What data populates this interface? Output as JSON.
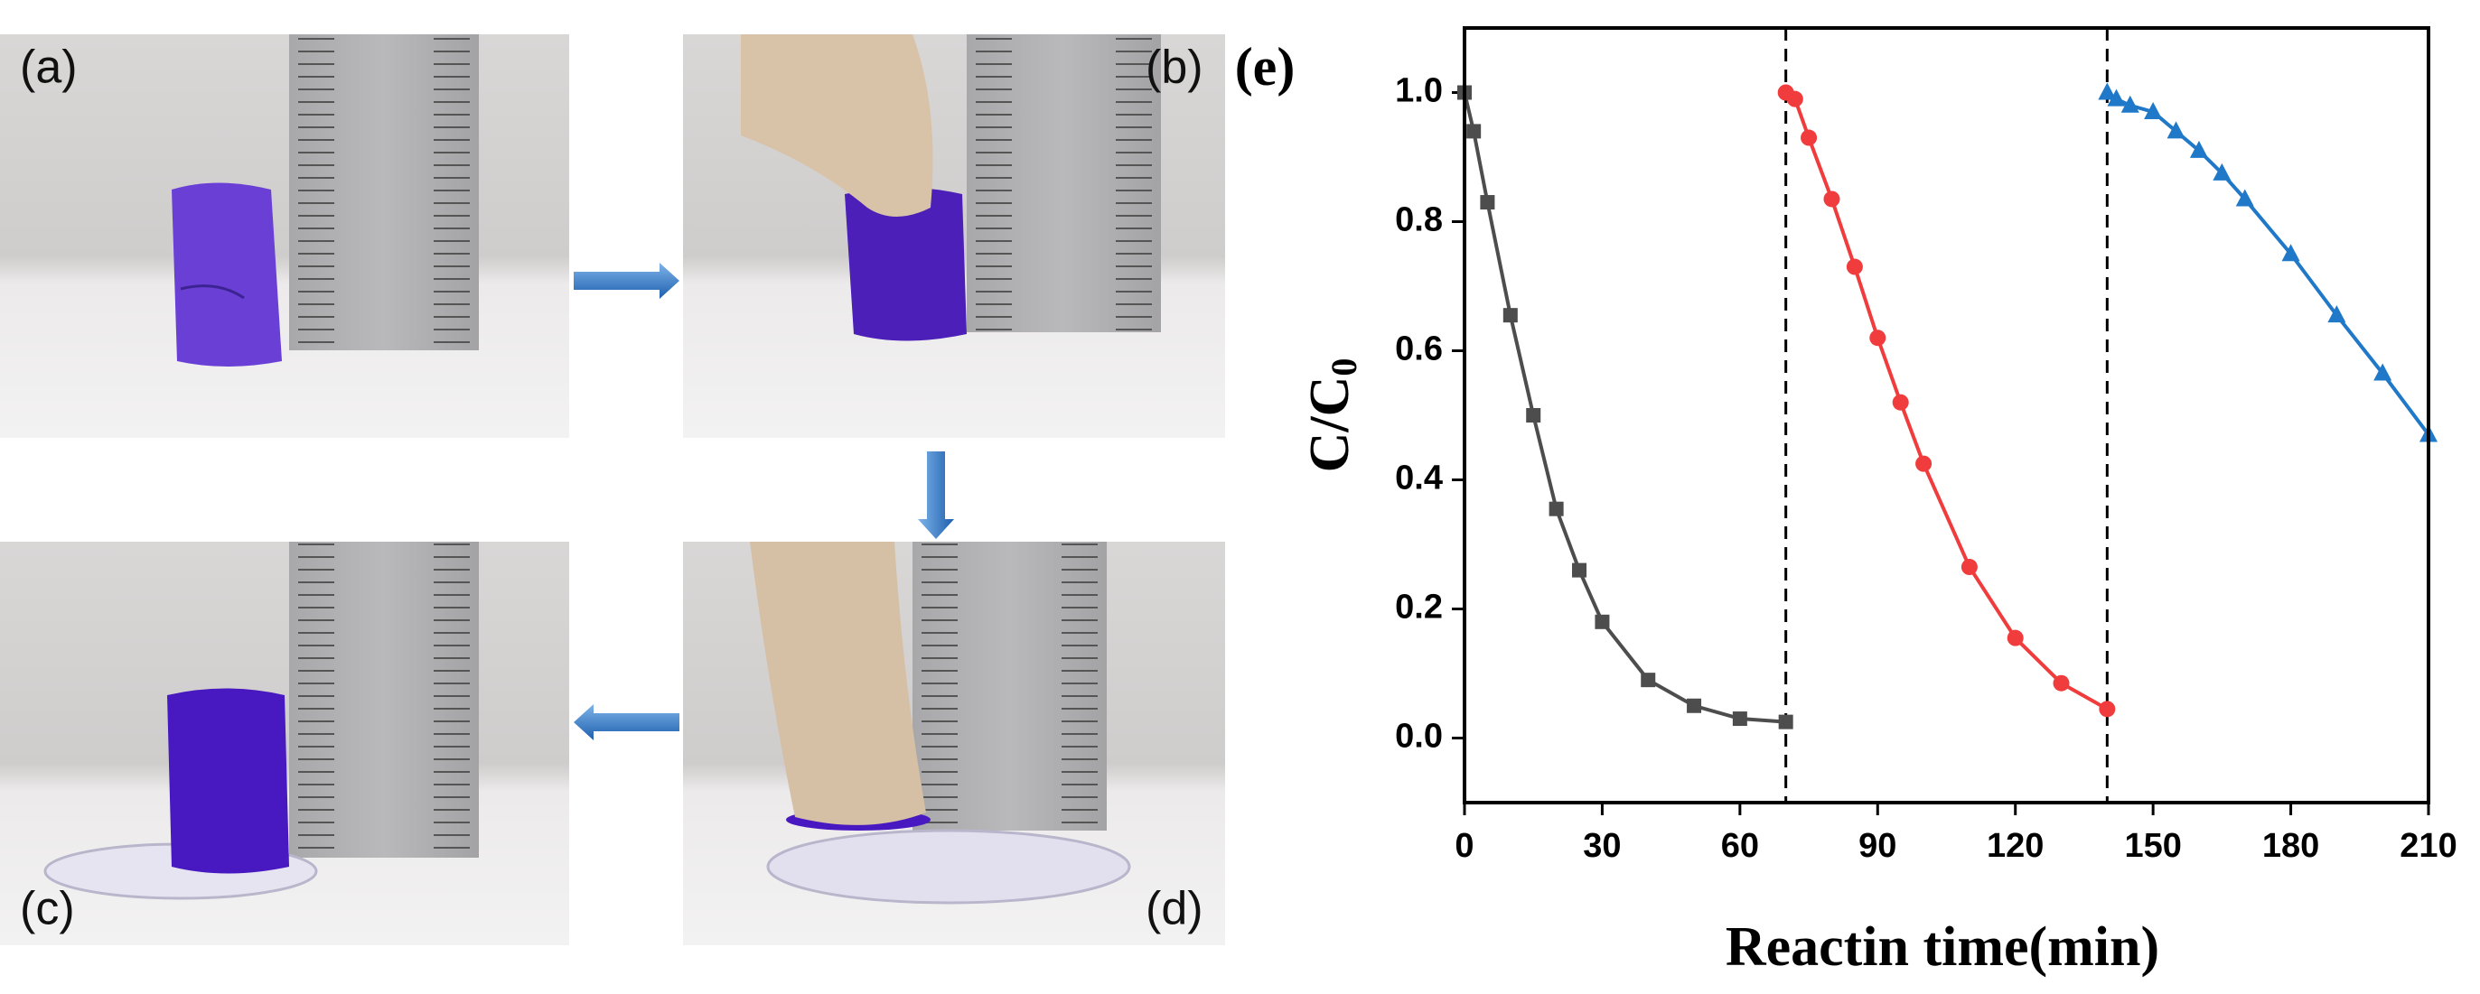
{
  "panels": [
    "(a)",
    "(b)",
    "(c)",
    "(d)"
  ],
  "chart_data": {
    "type": "line",
    "panel_label": "(e)",
    "xlabel": "Reactin time(min)",
    "ylabel": "C/C",
    "ylabel_subscript": "0",
    "xlim": [
      0,
      210
    ],
    "xticks": [
      0,
      30,
      60,
      90,
      120,
      150,
      180,
      210
    ],
    "ylim": [
      -0.1,
      1.1
    ],
    "yticks": [
      {
        "value": 0,
        "label": "0.0"
      },
      0.2,
      0.4,
      0.6,
      0.8,
      {
        "value": 1,
        "label": "1.0"
      }
    ],
    "vlines": [
      70,
      140
    ],
    "series": [
      {
        "color": "#4d4d4d",
        "marker": "square",
        "x": [
          0,
          2,
          5,
          10,
          15,
          20,
          25,
          30,
          40,
          50,
          60,
          70
        ],
        "values": [
          1.0,
          0.94,
          0.83,
          0.655,
          0.5,
          0.355,
          0.26,
          0.18,
          0.09,
          0.05,
          0.03,
          0.025
        ]
      },
      {
        "color": "#f03c3c",
        "marker": "circle",
        "x": [
          70,
          72,
          75,
          80,
          85,
          90,
          95,
          100,
          110,
          120,
          130,
          140
        ],
        "values": [
          1.0,
          0.99,
          0.93,
          0.835,
          0.73,
          0.62,
          0.52,
          0.425,
          0.265,
          0.155,
          0.085,
          0.045
        ]
      },
      {
        "color": "#1f78c8",
        "marker": "triangle",
        "x": [
          140,
          142,
          145,
          150,
          155,
          160,
          165,
          170,
          180,
          190,
          200,
          210
        ],
        "values": [
          1.0,
          0.99,
          0.98,
          0.97,
          0.94,
          0.91,
          0.875,
          0.835,
          0.75,
          0.655,
          0.565,
          0.47
        ]
      }
    ]
  }
}
